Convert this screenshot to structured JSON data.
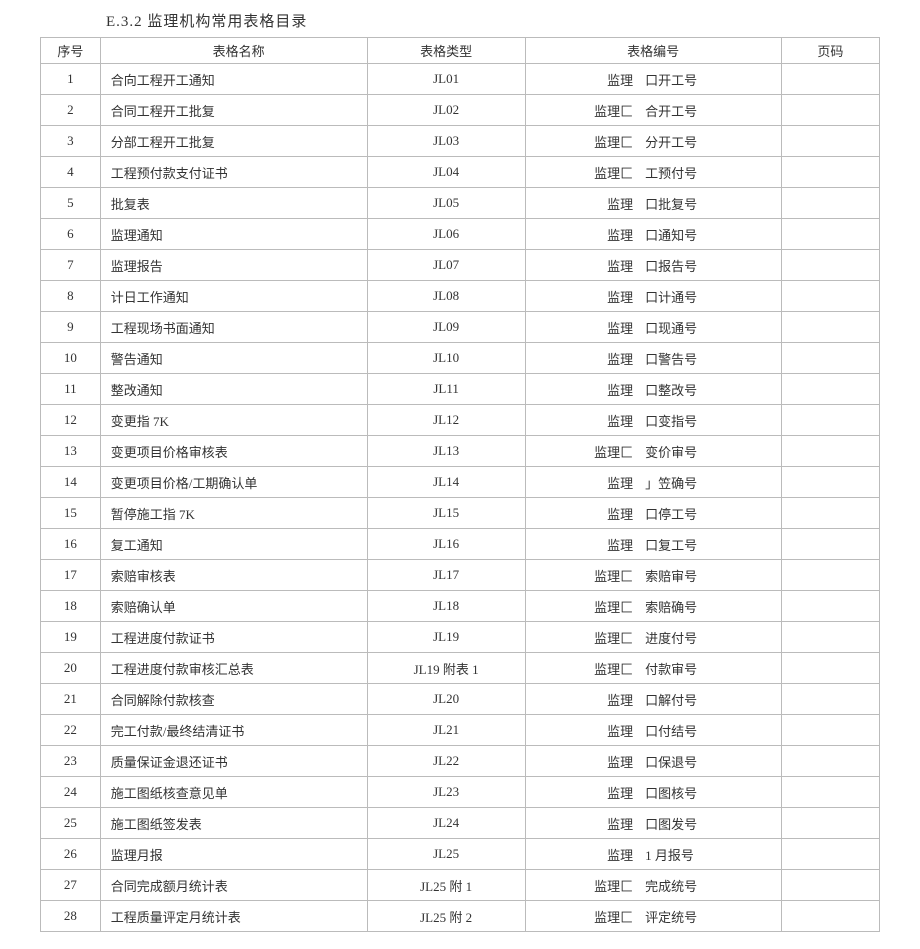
{
  "title": "E.3.2 监理机构常用表格目录",
  "columns": [
    "序号",
    "表格名称",
    "表格类型",
    "表格编号",
    "页码"
  ],
  "rows": [
    {
      "seq": "1",
      "name": "合向工程开工通知",
      "type": "JL01",
      "codeL": "监理",
      "codeR": "口开工号"
    },
    {
      "seq": "2",
      "name": "合同工程开工批复",
      "type": "JL02",
      "codeL": "监理匚",
      "codeR": "合开工号"
    },
    {
      "seq": "3",
      "name": "分部工程开工批复",
      "type": "JL03",
      "codeL": "监理匚",
      "codeR": "分开工号"
    },
    {
      "seq": "4",
      "name": "工程预付款支付证书",
      "type": "JL04",
      "codeL": "监理匚",
      "codeR": "工预付号"
    },
    {
      "seq": "5",
      "name": "批复表",
      "type": "JL05",
      "codeL": "监理",
      "codeR": "口批复号"
    },
    {
      "seq": "6",
      "name": "监理通知",
      "type": "JL06",
      "codeL": "监理",
      "codeR": "口通知号"
    },
    {
      "seq": "7",
      "name": "监理报告",
      "type": "JL07",
      "codeL": "监理",
      "codeR": "口报告号"
    },
    {
      "seq": "8",
      "name": "计日工作通知",
      "type": "JL08",
      "codeL": "监理",
      "codeR": "口计通号"
    },
    {
      "seq": "9",
      "name": "工程现场书面通知",
      "type": "JL09",
      "codeL": "监理",
      "codeR": "口现通号"
    },
    {
      "seq": "10",
      "name": "警告通知",
      "type": "JL10",
      "codeL": "监理",
      "codeR": "口警告号"
    },
    {
      "seq": "11",
      "name": "整改通知",
      "type": "JL11",
      "codeL": "监理",
      "codeR": "口整改号"
    },
    {
      "seq": "12",
      "name": "变更指 7K",
      "type": "JL12",
      "codeL": "监理",
      "codeR": "口变指号"
    },
    {
      "seq": "13",
      "name": "变更项目价格审核表",
      "type": "JL13",
      "codeL": "监理匚",
      "codeR": "变价审号"
    },
    {
      "seq": "14",
      "name": "变更项目价格/工期确认单",
      "type": "JL14",
      "codeL": "监理",
      "codeR": "」笠确号"
    },
    {
      "seq": "15",
      "name": "暂停施工指 7K",
      "type": "JL15",
      "codeL": "监理",
      "codeR": "口停工号"
    },
    {
      "seq": "16",
      "name": "复工通知",
      "type": "JL16",
      "codeL": "监理",
      "codeR": "口复工号"
    },
    {
      "seq": "17",
      "name": "索赔审核表",
      "type": "JL17",
      "codeL": "监理匚",
      "codeR": "索赔审号"
    },
    {
      "seq": "18",
      "name": "索赔确认单",
      "type": "JL18",
      "codeL": "监理匚",
      "codeR": "索赔确号"
    },
    {
      "seq": "19",
      "name": "工程进度付款证书",
      "type": "JL19",
      "codeL": "监理匚",
      "codeR": "进度付号"
    },
    {
      "seq": "20",
      "name": "工程进度付款审核汇总表",
      "type": "JL19 附表 1",
      "codeL": "监理匚",
      "codeR": "付款审号"
    },
    {
      "seq": "21",
      "name": "合同解除付款核查",
      "type": "JL20",
      "codeL": "监理",
      "codeR": "口解付号"
    },
    {
      "seq": "22",
      "name": "完工付款/最终结清证书",
      "type": "JL21",
      "codeL": "监理",
      "codeR": "口付结号"
    },
    {
      "seq": "23",
      "name": "质量保证金退还证书",
      "type": "JL22",
      "codeL": "监理",
      "codeR": "口保退号"
    },
    {
      "seq": "24",
      "name": "施工图纸核查意见单",
      "type": "JL23",
      "codeL": "监理",
      "codeR": "口图核号"
    },
    {
      "seq": "25",
      "name": "施工图纸签发表",
      "type": "JL24",
      "codeL": "监理",
      "codeR": "口图发号"
    },
    {
      "seq": "26",
      "name": "监理月报",
      "type": "JL25",
      "codeL": "监理",
      "codeR": "1 月报号"
    },
    {
      "seq": "27",
      "name": "合同完成额月统计表",
      "type": "JL25 附 1",
      "codeL": "监理匚",
      "codeR": "完成统号"
    },
    {
      "seq": "28",
      "name": "工程质量评定月统计表",
      "type": "JL25 附 2",
      "codeL": "监理匚",
      "codeR": "评定统号"
    }
  ]
}
